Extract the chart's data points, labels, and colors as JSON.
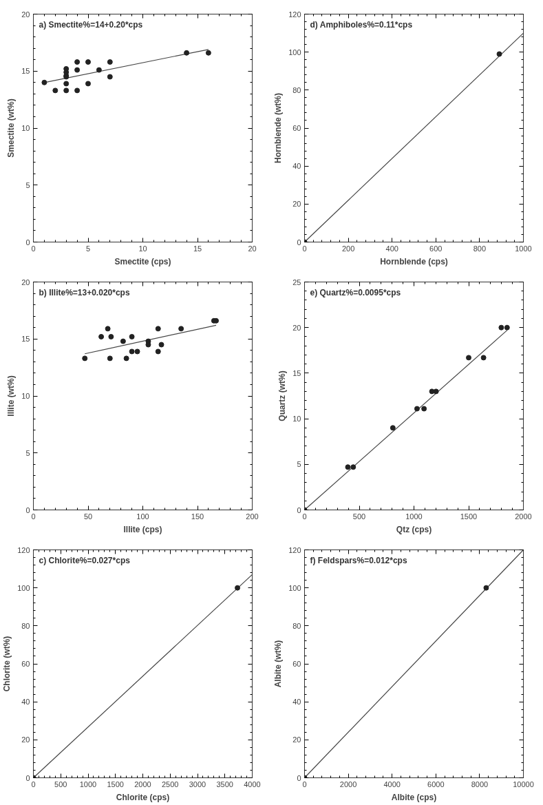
{
  "chart_data": [
    {
      "type": "scatter",
      "annotations": [
        "a)  Smectite%=14+0.20*cps"
      ],
      "xlabel": "Smectite (cps)",
      "ylabel": "Smectite (wt%)",
      "xlim": [
        0,
        20
      ],
      "ylim": [
        0,
        20
      ],
      "xticks": [
        0,
        5,
        10,
        15,
        20
      ],
      "yticks": [
        0,
        5,
        10,
        15,
        20
      ],
      "grid": false,
      "series": [
        {
          "marker": "circle",
          "color": "#222222",
          "x": [
            1,
            2,
            3,
            3,
            3,
            3,
            3,
            3,
            4,
            4,
            4,
            5,
            5,
            6,
            7,
            7,
            14,
            16
          ],
          "values": [
            14.0,
            13.3,
            13.3,
            13.9,
            14.5,
            14.6,
            14.9,
            15.2,
            13.3,
            15.1,
            15.8,
            15.8,
            13.9,
            15.1,
            15.8,
            14.5,
            16.6,
            16.6
          ]
        },
        {
          "type": "line",
          "color": "#444444",
          "x": [
            1,
            16
          ],
          "values": [
            14.0,
            16.9
          ]
        }
      ]
    },
    {
      "type": "scatter",
      "annotations": [
        "d)  Amphiboles%=0.11*cps"
      ],
      "xlabel": "Hornblende (cps)",
      "ylabel": "Hornblende (wt%)",
      "xlim": [
        0,
        1000
      ],
      "ylim": [
        0,
        120
      ],
      "xticks": [
        0,
        200,
        400,
        600,
        800,
        1000
      ],
      "yticks": [
        0,
        20,
        40,
        60,
        80,
        100,
        120
      ],
      "grid": false,
      "series": [
        {
          "marker": "circle",
          "color": "#222222",
          "x": [
            0,
            890
          ],
          "values": [
            0,
            99
          ]
        },
        {
          "type": "line",
          "color": "#444444",
          "x": [
            0,
            1000
          ],
          "values": [
            0,
            110
          ]
        }
      ]
    },
    {
      "type": "scatter",
      "annotations": [
        "b)  Illite%=13+0.020*cps"
      ],
      "xlabel": "Illite (cps)",
      "ylabel": "Illite (wt%)",
      "xlim": [
        0,
        200
      ],
      "ylim": [
        0,
        20
      ],
      "xticks": [
        0,
        50,
        100,
        150,
        200
      ],
      "yticks": [
        0,
        5,
        10,
        15,
        20
      ],
      "grid": false,
      "series": [
        {
          "marker": "circle",
          "color": "#222222",
          "x": [
            47,
            62,
            68,
            71,
            70,
            82,
            85,
            90,
            90,
            95,
            105,
            105,
            114,
            114,
            117,
            135,
            165,
            167
          ],
          "values": [
            13.3,
            15.2,
            15.9,
            15.2,
            13.3,
            14.8,
            13.3,
            15.2,
            13.9,
            13.9,
            14.8,
            14.5,
            15.9,
            13.9,
            14.5,
            15.9,
            16.6,
            16.6
          ]
        },
        {
          "type": "line",
          "color": "#444444",
          "x": [
            47,
            167
          ],
          "values": [
            13.7,
            16.2
          ]
        }
      ]
    },
    {
      "type": "scatter",
      "annotations": [
        "e)  Quartz%=0.0095*cps"
      ],
      "xlabel": "Qtz (cps)",
      "ylabel": "Quartz (wt%)",
      "xlim": [
        0,
        2000
      ],
      "ylim": [
        0,
        25
      ],
      "xticks": [
        0,
        500,
        1000,
        1500,
        2000
      ],
      "yticks": [
        0,
        5,
        10,
        15,
        20,
        25
      ],
      "grid": false,
      "series": [
        {
          "marker": "circle",
          "color": "#222222",
          "x": [
            0,
            396,
            445,
            807,
            1028,
            1092,
            1164,
            1202,
            1500,
            1636,
            1798,
            1851
          ],
          "values": [
            0,
            4.7,
            4.7,
            9.0,
            11.1,
            11.1,
            13.0,
            13.0,
            16.7,
            16.7,
            20.0,
            20.0
          ]
        },
        {
          "type": "line",
          "color": "#444444",
          "x": [
            0,
            1851
          ],
          "values": [
            0,
            19.7
          ]
        }
      ]
    },
    {
      "type": "scatter",
      "annotations": [
        "c)  Chlorite%=0.027*cps"
      ],
      "xlabel": "Chlorite (cps)",
      "ylabel": "Chlorite (wt%)",
      "xlim": [
        0,
        4000
      ],
      "ylim": [
        0,
        120
      ],
      "xticks": [
        0,
        500,
        1000,
        1500,
        2000,
        2500,
        3000,
        3500,
        4000
      ],
      "yticks": [
        0,
        20,
        40,
        60,
        80,
        100,
        120
      ],
      "grid": false,
      "series": [
        {
          "marker": "circle",
          "color": "#222222",
          "x": [
            0,
            3730
          ],
          "values": [
            0,
            100
          ]
        },
        {
          "type": "line",
          "color": "#444444",
          "x": [
            0,
            4000
          ],
          "values": [
            0,
            107
          ]
        }
      ]
    },
    {
      "type": "scatter",
      "annotations": [
        "f)  Feldspars%=0.012*cps"
      ],
      "xlabel": "Albite (cps)",
      "ylabel": "Albite (wt%)",
      "xlim": [
        0,
        10000
      ],
      "ylim": [
        0,
        120
      ],
      "xticks": [
        0,
        2000,
        4000,
        6000,
        8000,
        10000
      ],
      "yticks": [
        0,
        20,
        40,
        60,
        80,
        100,
        120
      ],
      "grid": false,
      "series": [
        {
          "marker": "circle",
          "color": "#222222",
          "x": [
            0,
            8300
          ],
          "values": [
            0,
            100
          ]
        },
        {
          "type": "line",
          "color": "#444444",
          "x": [
            0,
            10000
          ],
          "values": [
            0,
            120
          ]
        }
      ]
    }
  ]
}
